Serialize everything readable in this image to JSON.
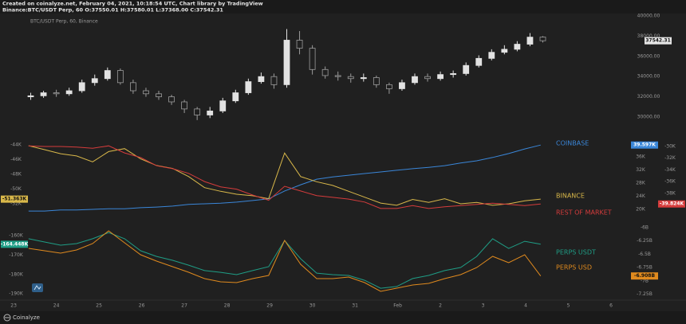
{
  "header": {
    "line1": "Created on coinalyze.net, February 04, 2021, 10:18:54 UTC, Chart library by TradingView",
    "line2": "Binance:BTC/USDT Perp, 60 O:37550.01 H:37580.01 L:37368.00 C:37542.31"
  },
  "footer": {
    "brand": "Coinalyze"
  },
  "chart_data": [
    {
      "type": "candlestick",
      "title": "BTC/USDT Perp, 60, Binance",
      "x": [
        0.4,
        0.7,
        1.0,
        1.3,
        1.6,
        1.9,
        2.2,
        2.5,
        2.8,
        3.1,
        3.4,
        3.7,
        4.0,
        4.3,
        4.6,
        4.9,
        5.2,
        5.5,
        5.8,
        6.1,
        6.4,
        6.7,
        7.0,
        7.3,
        7.6,
        7.9,
        8.2,
        8.5,
        8.8,
        9.1,
        9.4,
        9.7,
        10.0,
        10.3,
        10.6,
        10.9,
        11.2,
        11.5,
        11.8,
        12.1,
        12.4
      ],
      "open": [
        32000,
        32100,
        32400,
        32300,
        32600,
        33400,
        33800,
        34600,
        33400,
        32600,
        32300,
        32000,
        31500,
        30800,
        30200,
        30600,
        31600,
        32400,
        33500,
        34000,
        33200,
        37600,
        36800,
        34700,
        34100,
        34000,
        33800,
        33900,
        33200,
        32800,
        33400,
        34000,
        33800,
        34200,
        34300,
        35100,
        35800,
        36400,
        36700,
        37200,
        37900
      ],
      "high": [
        32400,
        32600,
        32700,
        32900,
        33700,
        34200,
        34900,
        34800,
        33700,
        32900,
        32600,
        32200,
        31700,
        31000,
        31000,
        31900,
        32700,
        33800,
        34400,
        34300,
        38700,
        38500,
        37100,
        35000,
        34500,
        34300,
        34300,
        34100,
        33400,
        33700,
        34300,
        34300,
        34500,
        34600,
        35400,
        36100,
        36700,
        37100,
        37500,
        38300,
        38000
      ],
      "low": [
        31700,
        31900,
        32000,
        32100,
        32400,
        33100,
        33600,
        33200,
        32300,
        32000,
        31700,
        31200,
        30400,
        29700,
        29900,
        30400,
        31400,
        32200,
        33300,
        32800,
        32900,
        36200,
        34200,
        33800,
        33600,
        33400,
        33500,
        32900,
        32300,
        32600,
        33200,
        33500,
        33600,
        33900,
        34100,
        34900,
        35600,
        36200,
        36500,
        37000,
        37368
      ],
      "close": [
        32100,
        32400,
        32300,
        32600,
        33400,
        33800,
        34600,
        33400,
        32600,
        32300,
        32000,
        31500,
        30800,
        30200,
        30600,
        31600,
        32400,
        33500,
        34000,
        33200,
        37600,
        36800,
        34700,
        34100,
        34000,
        33800,
        33900,
        33200,
        32800,
        33400,
        34000,
        33800,
        34200,
        34300,
        35100,
        35800,
        36400,
        36700,
        37200,
        37900,
        37542.31
      ],
      "up_color": "#e2e2e2",
      "down_color": "#9c9c9c",
      "xlim": [
        -0.32,
        14.26
      ],
      "ylim": [
        28980,
        40390
      ],
      "yticks": [
        {
          "value": 30000,
          "label": "30000.00"
        },
        {
          "value": 32000,
          "label": "32000.00"
        },
        {
          "value": 34000,
          "label": "34000.00"
        },
        {
          "value": 36000,
          "label": "36000.00"
        },
        {
          "value": 38000,
          "label": "38000.00"
        },
        {
          "value": 40000,
          "label": "40000.00"
        }
      ]
    },
    {
      "type": "line",
      "x": [
        0.35,
        0.725,
        1.1,
        1.475,
        1.85,
        2.225,
        2.6,
        2.975,
        3.35,
        3.725,
        4.1,
        4.475,
        4.85,
        5.225,
        5.6,
        5.975,
        6.35,
        6.725,
        7.1,
        7.475,
        7.85,
        8.225,
        8.6,
        8.975,
        9.35,
        9.725,
        10.1,
        10.475,
        10.85,
        11.225,
        11.6,
        11.975,
        12.35
      ],
      "series": [
        {
          "name": "COINBASE",
          "color": "#3a86d8",
          "axis": "y2",
          "values": [
            19500,
            19500,
            19800,
            19800,
            20000,
            20200,
            20200,
            20500,
            20700,
            21000,
            21500,
            21700,
            21900,
            22200,
            22700,
            23200,
            25600,
            27500,
            29200,
            29900,
            30400,
            30900,
            31400,
            31900,
            32400,
            32800,
            33300,
            34100,
            34800,
            35800,
            37000,
            38400,
            39597
          ],
          "value_labels": [
            null,
            null,
            null,
            null,
            null,
            null,
            null,
            null,
            null,
            null,
            null,
            null,
            null,
            null,
            null,
            null,
            null,
            null,
            null,
            null,
            null,
            null,
            null,
            null,
            null,
            null,
            null,
            null,
            null,
            null,
            null,
            null,
            "39.597K"
          ]
        },
        {
          "name": "BINANCE",
          "color": "#d9b84a",
          "values": [
            -44100,
            -44650,
            -45200,
            -45500,
            -46300,
            -44900,
            -44500,
            -45900,
            -46800,
            -47200,
            -48300,
            -49800,
            -50300,
            -50700,
            -50900,
            -51300,
            -45100,
            -48300,
            -49000,
            -49500,
            -50300,
            -51100,
            -51900,
            -52200,
            -51400,
            -51800,
            -51300,
            -52000,
            -51800,
            -52200,
            -52000,
            -51600,
            -51363
          ],
          "value_labels": [
            null,
            null,
            null,
            null,
            null,
            null,
            null,
            null,
            null,
            null,
            null,
            null,
            null,
            null,
            null,
            null,
            null,
            null,
            null,
            null,
            null,
            null,
            null,
            null,
            null,
            null,
            null,
            null,
            null,
            null,
            null,
            null,
            "-51.363K"
          ]
        },
        {
          "name": "REST OF MARKET",
          "color": "#d63c3c",
          "axis": "y3",
          "values": [
            -29900,
            -30000,
            -30000,
            -30100,
            -30300,
            -29900,
            -31100,
            -31900,
            -33300,
            -33800,
            -34600,
            -36000,
            -36900,
            -37300,
            -38300,
            -39200,
            -36800,
            -37600,
            -38400,
            -38700,
            -39000,
            -39500,
            -40600,
            -40600,
            -40100,
            -40600,
            -40300,
            -40100,
            -39900,
            -39700,
            -39900,
            -40100,
            -39824
          ],
          "value_labels": [
            null,
            null,
            null,
            null,
            null,
            null,
            null,
            null,
            null,
            null,
            null,
            null,
            null,
            null,
            null,
            null,
            null,
            null,
            null,
            null,
            null,
            null,
            null,
            null,
            null,
            null,
            null,
            null,
            null,
            null,
            null,
            null,
            "-39.824K"
          ]
        }
      ],
      "xlim": [
        -0.32,
        14.26
      ],
      "ylim": [
        -54050,
        -42700
      ],
      "yticks": [
        {
          "value": -44000,
          "label": "-44K"
        },
        {
          "value": -46000,
          "label": "-46K"
        },
        {
          "value": -48000,
          "label": "-48K"
        },
        {
          "value": -50000,
          "label": "-50K"
        },
        {
          "value": -52000,
          "label": "-52K"
        }
      ],
      "y2lim": [
        17090,
        42550
      ],
      "y2ticks": [
        {
          "value": 20000,
          "label": "20K"
        },
        {
          "value": 24000,
          "label": "24K"
        },
        {
          "value": 28000,
          "label": "28K"
        },
        {
          "value": 32000,
          "label": "32K"
        },
        {
          "value": 36000,
          "label": "36K"
        }
      ],
      "y3lim": [
        -42380,
        -28100
      ],
      "y3ticks": [
        {
          "value": -30000,
          "label": "-30K"
        },
        {
          "value": -32000,
          "label": "-32K"
        },
        {
          "value": -34000,
          "label": "-34K"
        },
        {
          "value": -36000,
          "label": "-36K"
        },
        {
          "value": -38000,
          "label": "-38K"
        }
      ]
    },
    {
      "type": "line",
      "x": [
        0.35,
        0.725,
        1.1,
        1.475,
        1.85,
        2.225,
        2.6,
        2.975,
        3.35,
        3.725,
        4.1,
        4.475,
        4.85,
        5.225,
        5.6,
        5.975,
        6.35,
        6.725,
        7.1,
        7.475,
        7.85,
        8.225,
        8.6,
        8.975,
        9.35,
        9.725,
        10.1,
        10.475,
        10.85,
        11.225,
        11.6,
        11.975,
        12.35
      ],
      "series": [
        {
          "name": "PERPS USDT",
          "color": "#1f9e86",
          "values": [
            -161600,
            -163300,
            -164900,
            -164100,
            -161600,
            -158400,
            -161600,
            -167800,
            -170700,
            -172700,
            -175200,
            -178000,
            -178900,
            -180100,
            -178000,
            -176000,
            -162500,
            -171900,
            -179300,
            -180100,
            -180500,
            -183000,
            -187100,
            -186200,
            -182100,
            -180500,
            -178000,
            -176400,
            -170700,
            -161600,
            -166600,
            -162900,
            -164448
          ],
          "value_labels": [
            null,
            null,
            null,
            null,
            null,
            null,
            null,
            null,
            null,
            null,
            null,
            null,
            null,
            null,
            null,
            null,
            null,
            null,
            null,
            null,
            null,
            null,
            null,
            null,
            null,
            null,
            null,
            null,
            null,
            null,
            null,
            null,
            "-164.448K"
          ]
        },
        {
          "name": "PERPS USD",
          "color": "#e08a1e",
          "axis": "y2",
          "values": [
            -6389000000,
            -6434000000,
            -6479000000,
            -6419000000,
            -6299000000,
            -6060000000,
            -6284000000,
            -6509000000,
            -6629000000,
            -6734000000,
            -6838000000,
            -6958000000,
            -7018000000,
            -7033000000,
            -6958000000,
            -6898000000,
            -6240000000,
            -6689000000,
            -6958000000,
            -6958000000,
            -6928000000,
            -7033000000,
            -7198000000,
            -7138000000,
            -7078000000,
            -7048000000,
            -6958000000,
            -6883000000,
            -6749000000,
            -6539000000,
            -6659000000,
            -6509000000,
            -6908000000
          ],
          "value_labels": [
            null,
            null,
            null,
            null,
            null,
            null,
            null,
            null,
            null,
            null,
            null,
            null,
            null,
            null,
            null,
            null,
            null,
            null,
            null,
            null,
            null,
            null,
            null,
            null,
            null,
            null,
            null,
            null,
            null,
            null,
            null,
            null,
            "-6.908B"
          ]
        }
      ],
      "xlim": [
        -0.32,
        14.26
      ],
      "ylim": [
        -192390,
        -153440
      ],
      "yticks": [
        {
          "value": -160000,
          "label": "-160K"
        },
        {
          "value": -170000,
          "label": "-170K"
        },
        {
          "value": -180000,
          "label": "-180K"
        },
        {
          "value": -190000,
          "label": "-190K"
        }
      ],
      "y2lim": [
        -7332000000,
        -5910000000
      ],
      "y2ticks": [
        {
          "value": -6000000000,
          "label": "-6B"
        },
        {
          "value": -6250000000,
          "label": "-6.25B"
        },
        {
          "value": -6500000000,
          "label": "-6.5B"
        },
        {
          "value": -6750000000,
          "label": "-6.75B"
        },
        {
          "value": -7000000000,
          "label": "-7B"
        },
        {
          "value": -7250000000,
          "label": "-7.25B"
        }
      ],
      "xticks": [
        {
          "value": 0,
          "label": "23"
        },
        {
          "value": 1,
          "label": "24"
        },
        {
          "value": 2,
          "label": "25"
        },
        {
          "value": 3,
          "label": "26"
        },
        {
          "value": 4,
          "label": "27"
        },
        {
          "value": 5,
          "label": "28"
        },
        {
          "value": 6,
          "label": "29"
        },
        {
          "value": 7,
          "label": "30"
        },
        {
          "value": 8,
          "label": "31"
        },
        {
          "value": 9,
          "label": "Feb"
        },
        {
          "value": 10,
          "label": "2"
        },
        {
          "value": 11,
          "label": "3"
        },
        {
          "value": 12,
          "label": "4"
        },
        {
          "value": 13,
          "label": "5"
        },
        {
          "value": 14,
          "label": "6"
        }
      ]
    }
  ]
}
